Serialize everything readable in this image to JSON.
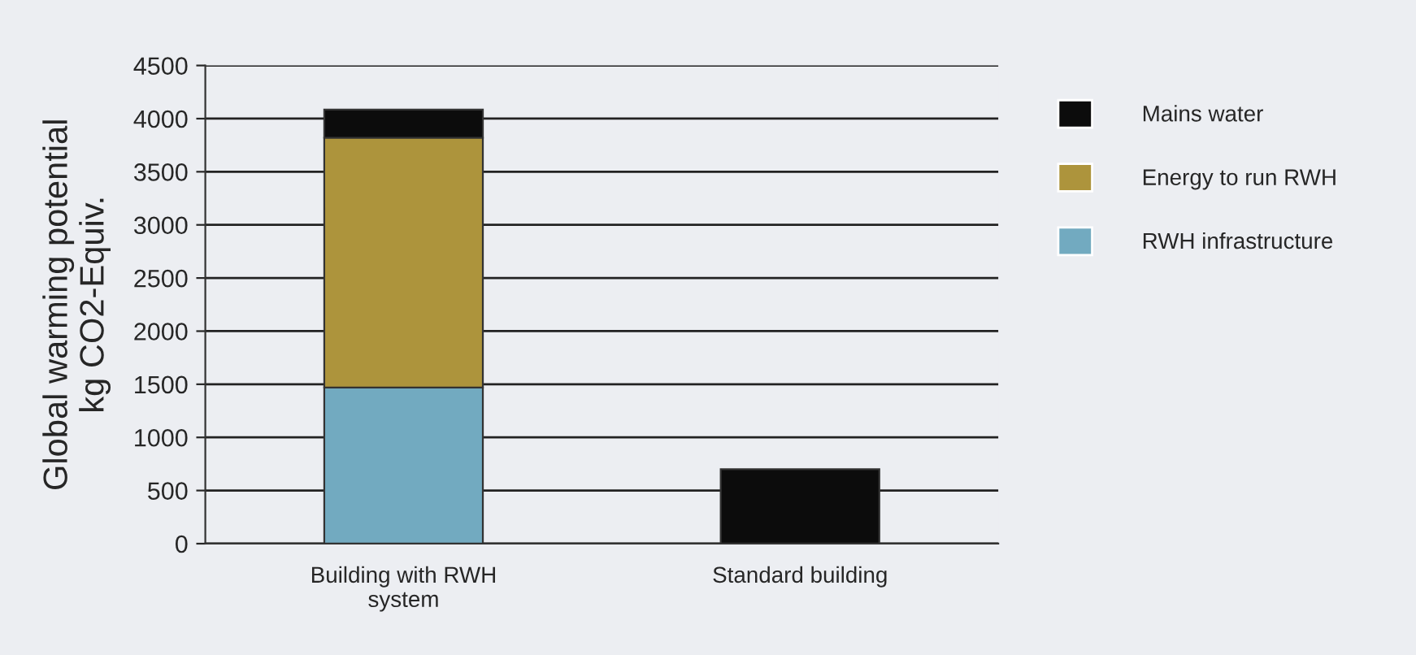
{
  "chart_data": {
    "type": "bar",
    "stacked": true,
    "ylabel": "Global warming potential\nkg CO2-Equiv.",
    "categories": [
      "Building with RWH\nsystem",
      "Standard building"
    ],
    "series": [
      {
        "name": "RWH infrastructure",
        "color": "#72aac0",
        "values": [
          1470,
          null
        ]
      },
      {
        "name": "Energy to run RWH",
        "color": "#ad943c",
        "values": [
          2350,
          null
        ]
      },
      {
        "name": "Mains water",
        "color": "#0c0c0c",
        "values": [
          265,
          700
        ]
      }
    ],
    "ylim": [
      0,
      4500
    ],
    "yticks": [
      0,
      500,
      1000,
      1500,
      2000,
      2500,
      3000,
      3500,
      4000,
      4500
    ],
    "grid": "y",
    "legend": "right"
  }
}
